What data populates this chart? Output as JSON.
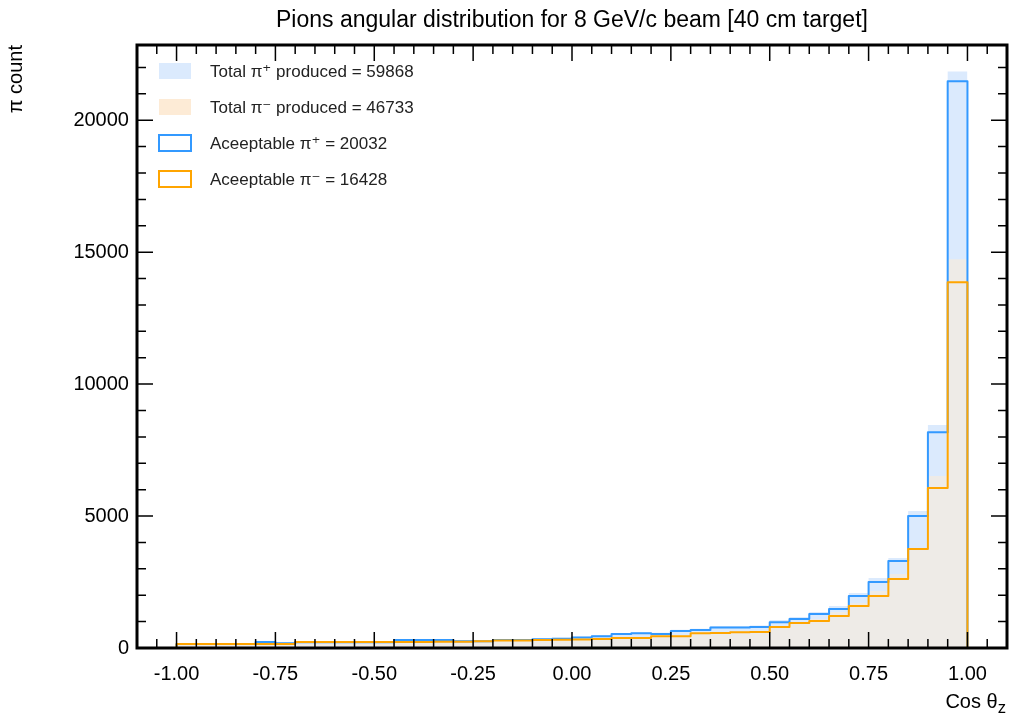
{
  "chart_data": {
    "type": "histogram",
    "title": "Pions angular distribution for 8 GeV/c beam [40 cm target]",
    "xlabel": "Cos θ$_{z}$",
    "ylabel": "π count",
    "bins": [
      -1.0,
      -0.95,
      -0.9,
      -0.85,
      -0.8,
      -0.75,
      -0.7,
      -0.65,
      -0.6,
      -0.55,
      -0.5,
      -0.45,
      -0.4,
      -0.35,
      -0.3,
      -0.25,
      -0.2,
      -0.15,
      -0.1,
      -0.05,
      0.0,
      0.05,
      0.1,
      0.15,
      0.2,
      0.25,
      0.3,
      0.35,
      0.4,
      0.45,
      0.5,
      0.55,
      0.6,
      0.65,
      0.7,
      0.75,
      0.8,
      0.85,
      0.9,
      0.95,
      1.0
    ],
    "series": [
      {
        "name": "Total π⁺ produced = 59868",
        "color": "#dbeafd",
        "values": [
          190,
          190,
          190,
          190,
          270,
          220,
          260,
          260,
          260,
          260,
          260,
          340,
          340,
          340,
          300,
          300,
          340,
          340,
          370,
          390,
          440,
          490,
          570,
          600,
          580,
          690,
          730,
          830,
          830,
          850,
          1060,
          1170,
          1360,
          1590,
          2080,
          2650,
          3410,
          5190,
          8450,
          21850
        ]
      },
      {
        "name": "Total π⁻ produced = 46733",
        "color": "#fdebd6",
        "values": [
          180,
          180,
          180,
          180,
          180,
          180,
          260,
          260,
          260,
          260,
          260,
          260,
          260,
          270,
          270,
          290,
          310,
          310,
          330,
          340,
          350,
          370,
          420,
          420,
          490,
          490,
          600,
          610,
          640,
          650,
          830,
          980,
          1100,
          1360,
          1700,
          2160,
          2800,
          3790,
          6520,
          14730
        ]
      },
      {
        "name": "Aceeptable π⁺ = 20032",
        "line_style": "solid",
        "color": "#3399ff",
        "values": [
          150,
          150,
          150,
          150,
          230,
          180,
          220,
          220,
          220,
          220,
          220,
          300,
          300,
          300,
          260,
          260,
          300,
          300,
          330,
          350,
          400,
          450,
          530,
          560,
          530,
          640,
          680,
          780,
          780,
          800,
          980,
          1100,
          1290,
          1480,
          1970,
          2500,
          3300,
          5000,
          8180,
          21480
        ]
      },
      {
        "name": "Aceeptable π⁻ = 16428",
        "line_style": "solid",
        "color": "#ffa500",
        "values": [
          150,
          150,
          150,
          150,
          150,
          150,
          230,
          230,
          230,
          230,
          230,
          230,
          230,
          240,
          240,
          260,
          280,
          280,
          300,
          310,
          320,
          340,
          380,
          380,
          450,
          450,
          560,
          570,
          600,
          610,
          800,
          950,
          1020,
          1210,
          1590,
          1970,
          2610,
          3750,
          6060,
          13860
        ]
      }
    ],
    "xlim": [
      -1.1,
      1.1
    ],
    "xticks": [
      {
        "value": -1.05,
        "label": null
      },
      {
        "value": -1.0,
        "label": "-1.00"
      },
      {
        "value": -0.95,
        "label": null
      },
      {
        "value": -0.9,
        "label": null
      },
      {
        "value": -0.85,
        "label": null
      },
      {
        "value": -0.8,
        "label": null
      },
      {
        "value": -0.75,
        "label": "-0.75"
      },
      {
        "value": -0.7,
        "label": null
      },
      {
        "value": -0.65,
        "label": null
      },
      {
        "value": -0.6,
        "label": null
      },
      {
        "value": -0.55,
        "label": null
      },
      {
        "value": -0.5,
        "label": "-0.50"
      },
      {
        "value": -0.45,
        "label": null
      },
      {
        "value": -0.4,
        "label": null
      },
      {
        "value": -0.35,
        "label": null
      },
      {
        "value": -0.3,
        "label": null
      },
      {
        "value": -0.25,
        "label": "-0.25"
      },
      {
        "value": -0.2,
        "label": null
      },
      {
        "value": -0.15,
        "label": null
      },
      {
        "value": -0.1,
        "label": null
      },
      {
        "value": -0.05,
        "label": null
      },
      {
        "value": 0,
        "label": "0.00"
      },
      {
        "value": 0.05,
        "label": null
      },
      {
        "value": 0.1,
        "label": null
      },
      {
        "value": 0.15,
        "label": null
      },
      {
        "value": 0.2,
        "label": null
      },
      {
        "value": 0.25,
        "label": "0.25"
      },
      {
        "value": 0.3,
        "label": null
      },
      {
        "value": 0.35,
        "label": null
      },
      {
        "value": 0.4,
        "label": null
      },
      {
        "value": 0.45,
        "label": null
      },
      {
        "value": 0.5,
        "label": "0.50"
      },
      {
        "value": 0.55,
        "label": null
      },
      {
        "value": 0.6,
        "label": null
      },
      {
        "value": 0.65,
        "label": null
      },
      {
        "value": 0.7,
        "label": null
      },
      {
        "value": 0.75,
        "label": "0.75"
      },
      {
        "value": 0.8,
        "label": null
      },
      {
        "value": 0.85,
        "label": null
      },
      {
        "value": 0.9,
        "label": null
      },
      {
        "value": 0.95,
        "label": null
      },
      {
        "value": 1.0,
        "label": "1.00"
      },
      {
        "value": 1.05,
        "label": null
      }
    ],
    "ylim": [
      0,
      22850
    ],
    "yticks": [
      0,
      {
        "value": 1000,
        "label": null
      },
      {
        "value": 2000,
        "label": null
      },
      {
        "value": 3000,
        "label": null
      },
      {
        "value": 4000,
        "label": null
      },
      5000,
      {
        "value": 6000,
        "label": null
      },
      {
        "value": 7000,
        "label": null
      },
      {
        "value": 8000,
        "label": null
      },
      {
        "value": 9000,
        "label": null
      },
      10000,
      {
        "value": 11000,
        "label": null
      },
      {
        "value": 12000,
        "label": null
      },
      {
        "value": 13000,
        "label": null
      },
      {
        "value": 14000,
        "label": null
      },
      15000,
      {
        "value": 16000,
        "label": null
      },
      {
        "value": 17000,
        "label": null
      },
      {
        "value": 18000,
        "label": null
      },
      {
        "value": 19000,
        "label": null
      },
      20000,
      {
        "value": 21000,
        "label": null
      },
      {
        "value": 22000,
        "label": null
      }
    ],
    "grid": false,
    "legend": "top left"
  }
}
